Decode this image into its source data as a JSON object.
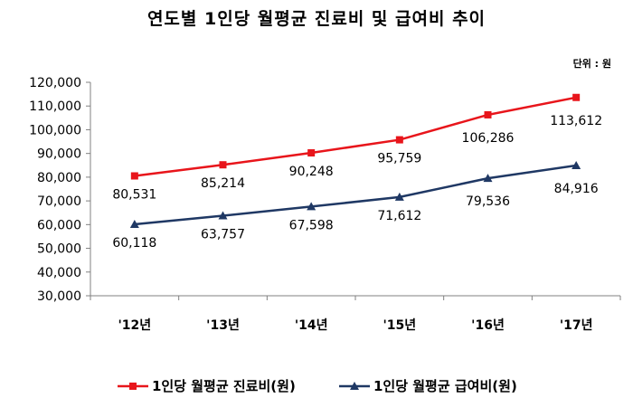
{
  "chart_data": {
    "type": "line",
    "title": "연도별 1인당 월평균 진료비 및 급여비 추이",
    "unit_label": "단위 : 원",
    "categories": [
      "'12년",
      "'13년",
      "'14년",
      "'15년",
      "'16년",
      "'17년"
    ],
    "ylim": [
      30000,
      120000
    ],
    "yticks": [
      "30,000",
      "40,000",
      "50,000",
      "60,000",
      "70,000",
      "80,000",
      "90,000",
      "100,000",
      "110,000",
      "120,000"
    ],
    "series": [
      {
        "name": "1인당 월평균 진료비(원)",
        "values": [
          80531,
          85214,
          90248,
          95759,
          106286,
          113612
        ],
        "labels": [
          "80,531",
          "85,214",
          "90,248",
          "95,759",
          "106,286",
          "113,612"
        ],
        "color": "#e8151b",
        "marker": "square"
      },
      {
        "name": "1인당 월평균 급여비(원)",
        "values": [
          60118,
          63757,
          67598,
          71612,
          79536,
          84916
        ],
        "labels": [
          "60,118",
          "63,757",
          "67,598",
          "71,612",
          "79,536",
          "84,916"
        ],
        "color": "#1f3864",
        "marker": "triangle"
      }
    ]
  }
}
